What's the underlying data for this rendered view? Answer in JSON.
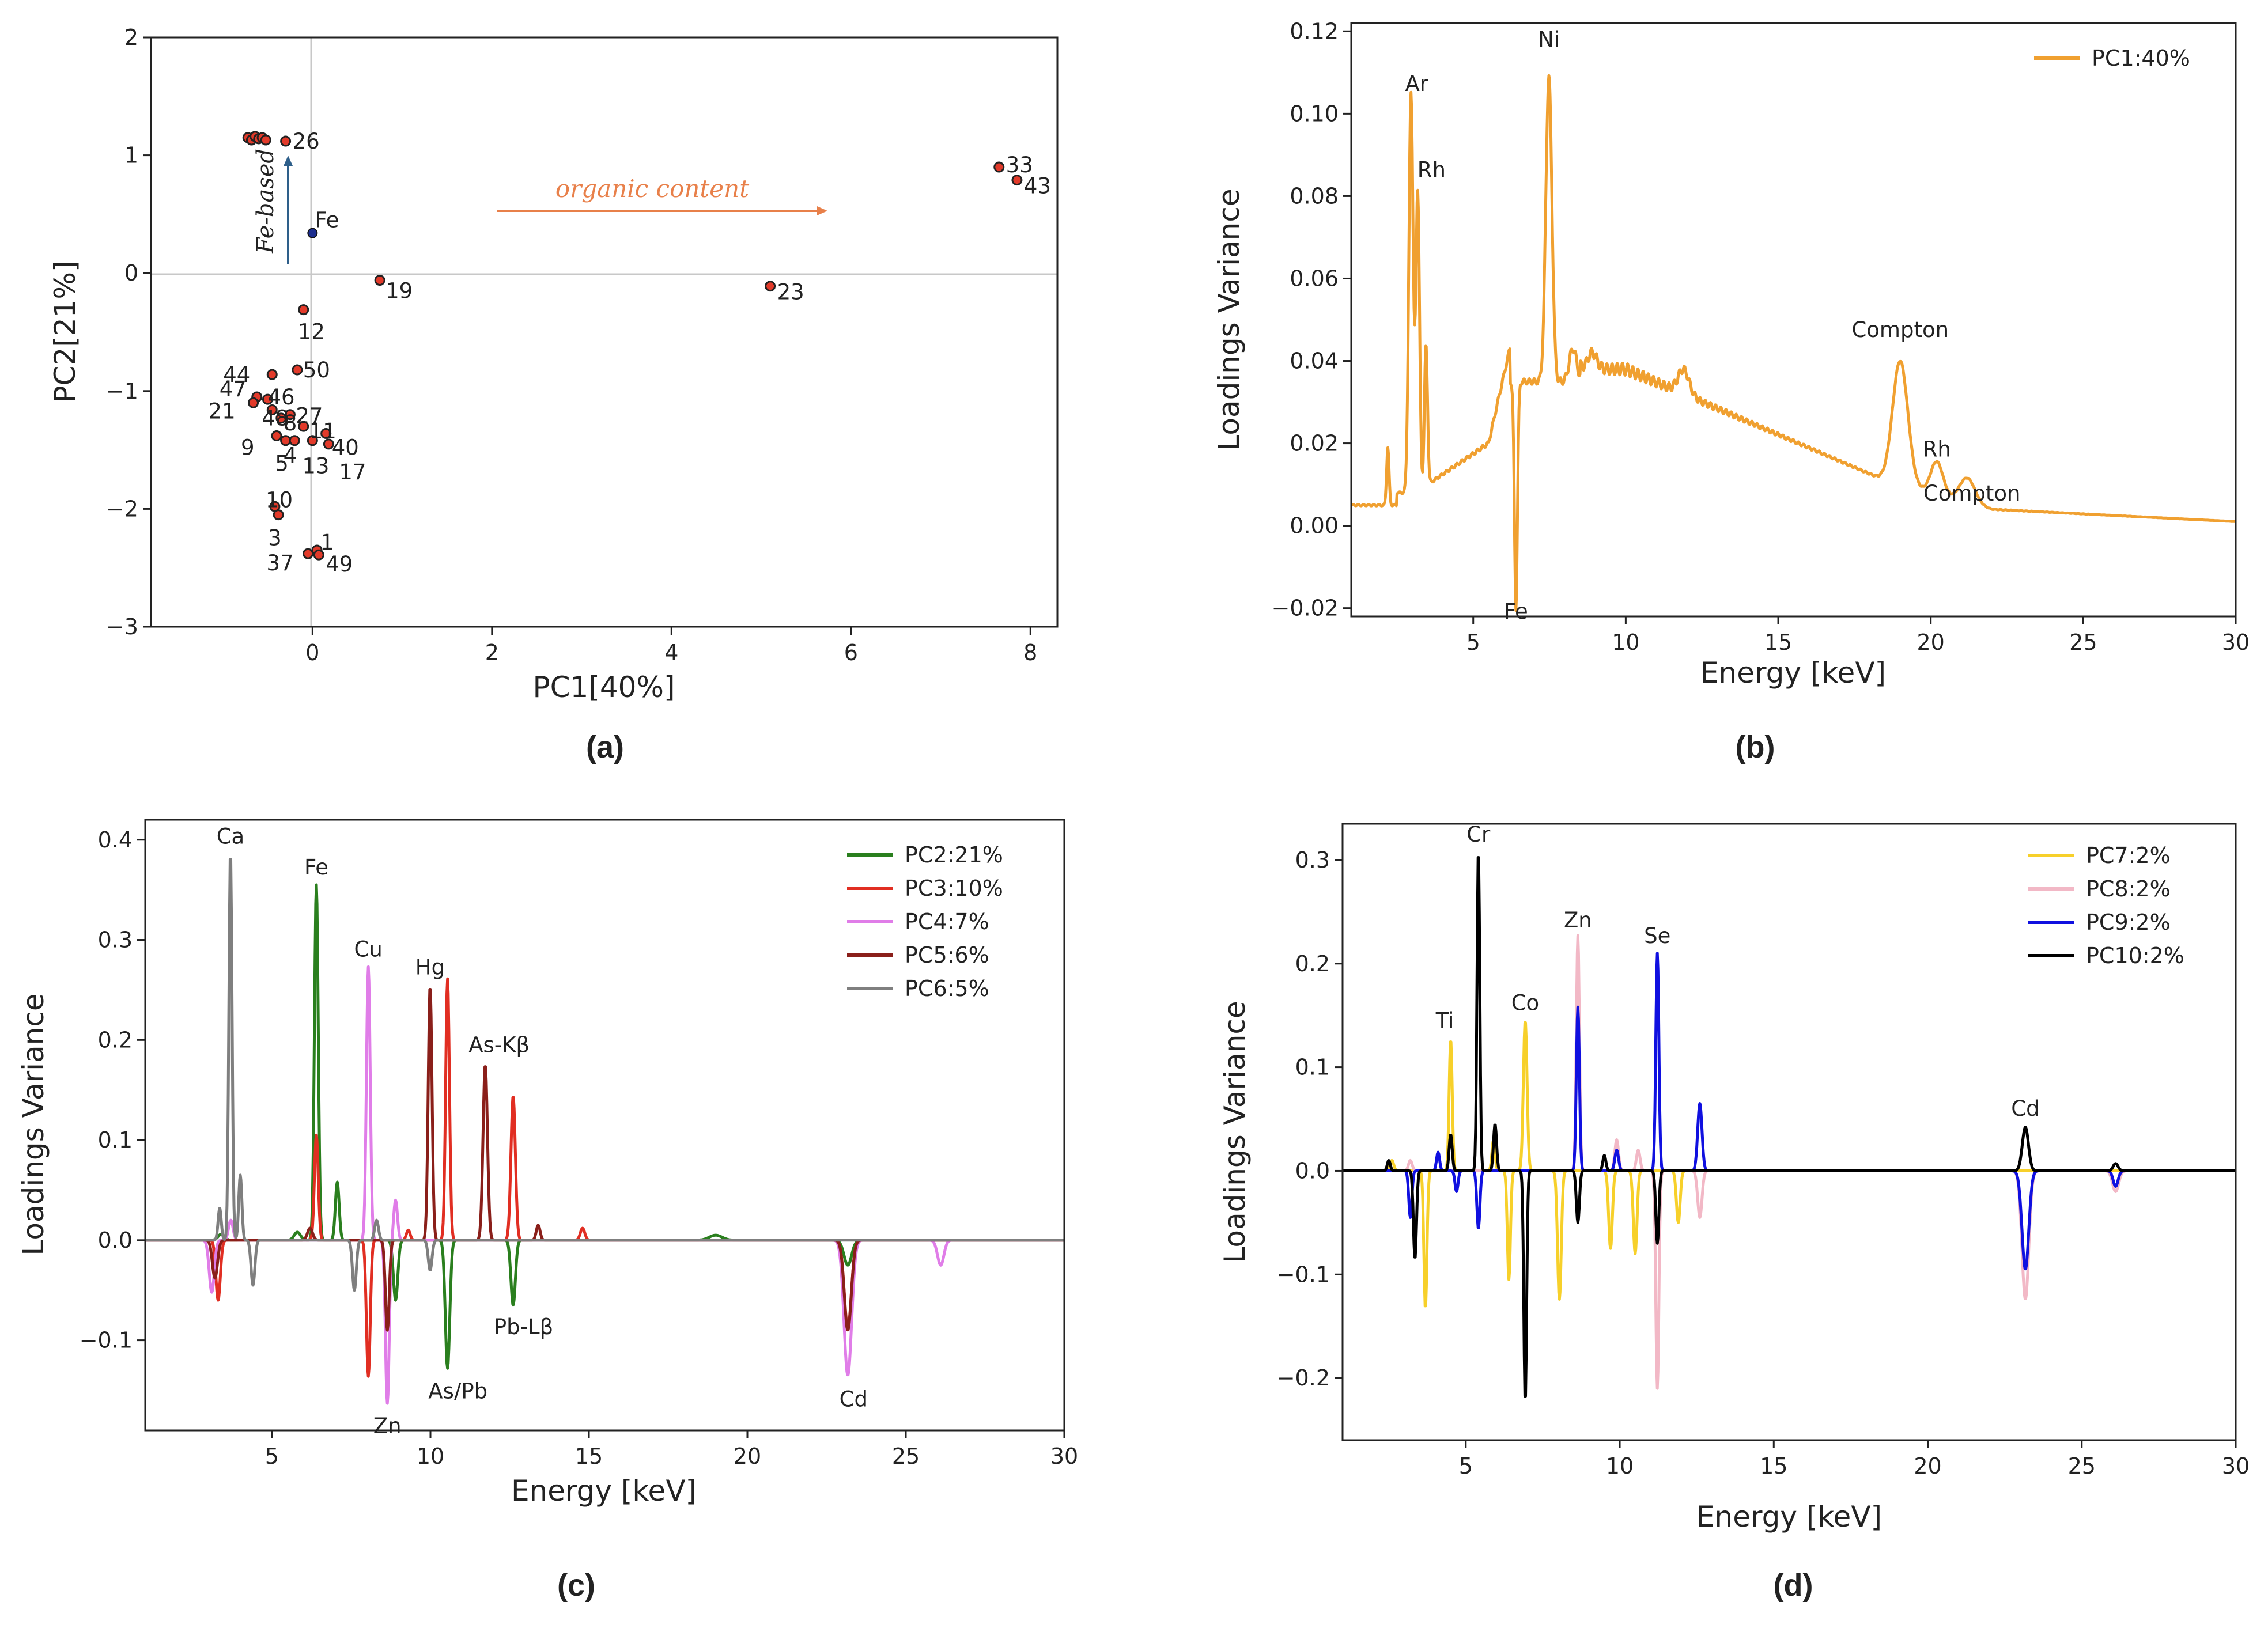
{
  "colors": {
    "axis": "#222222",
    "zero_line": "#c8c8c8",
    "scatter_fill": "#e23a2a",
    "fe_point": "#1c2e8f",
    "arrow_fe": "#2e5f8a",
    "arrow_organic": "#e8804a",
    "pc1": "#f0a030",
    "pc2": "#2a7f1e",
    "pc3": "#e12e22",
    "pc4": "#e07de8",
    "pc5": "#8a1f1a",
    "pc6": "#7f7f7f",
    "pc7": "#f7d02a",
    "pc8": "#f2b8c6",
    "pc9": "#1010e0",
    "pc10": "#000000"
  },
  "chart_data": [
    {
      "panel": "(a)",
      "type": "scatter",
      "xlabel": "PC1[40%]",
      "ylabel": "PC2[21%]",
      "xlim": [
        -1.8,
        8.3
      ],
      "ylim": [
        -3,
        2
      ],
      "xticks": [
        0,
        2,
        4,
        6,
        8
      ],
      "yticks": [
        -3,
        -2,
        -1,
        0,
        1,
        2
      ],
      "points": [
        {
          "label": "",
          "x": -0.72,
          "y": 1.15
        },
        {
          "label": "",
          "x": -0.68,
          "y": 1.13
        },
        {
          "label": "",
          "x": -0.64,
          "y": 1.16
        },
        {
          "label": "",
          "x": -0.6,
          "y": 1.14
        },
        {
          "label": "",
          "x": -0.56,
          "y": 1.15
        },
        {
          "label": "",
          "x": -0.52,
          "y": 1.13
        },
        {
          "label": "26",
          "x": -0.3,
          "y": 1.12
        },
        {
          "label": "33",
          "x": 7.65,
          "y": 0.9
        },
        {
          "label": "43",
          "x": 7.85,
          "y": 0.79
        },
        {
          "label": "19",
          "x": 0.75,
          "y": -0.06
        },
        {
          "label": "23",
          "x": 5.1,
          "y": -0.11
        },
        {
          "label": "12",
          "x": -0.1,
          "y": -0.31
        },
        {
          "label": "44",
          "x": -0.45,
          "y": -0.86
        },
        {
          "label": "50",
          "x": -0.17,
          "y": -0.82
        },
        {
          "label": "47",
          "x": -0.62,
          "y": -1.05
        },
        {
          "label": "46",
          "x": -0.5,
          "y": -1.07
        },
        {
          "label": "21",
          "x": -0.66,
          "y": -1.1
        },
        {
          "label": "48",
          "x": -0.45,
          "y": -1.16
        },
        {
          "label": "27",
          "x": -0.25,
          "y": -1.2
        },
        {
          "label": "8",
          "x": -0.35,
          "y": -1.23
        },
        {
          "label": "11",
          "x": -0.1,
          "y": -1.3
        },
        {
          "label": "9",
          "x": -0.4,
          "y": -1.38
        },
        {
          "label": "4",
          "x": -0.3,
          "y": -1.42
        },
        {
          "label": "40",
          "x": 0.15,
          "y": -1.36
        },
        {
          "label": "5",
          "x": -0.2,
          "y": -1.42
        },
        {
          "label": "13",
          "x": 0.0,
          "y": -1.42
        },
        {
          "label": "17",
          "x": 0.18,
          "y": -1.45
        },
        {
          "label": "10",
          "x": -0.42,
          "y": -1.98
        },
        {
          "label": "3",
          "x": -0.38,
          "y": -2.05
        },
        {
          "label": "1",
          "x": 0.05,
          "y": -2.35
        },
        {
          "label": "37",
          "x": -0.05,
          "y": -2.38
        },
        {
          "label": "49",
          "x": 0.07,
          "y": -2.39
        }
      ],
      "fe_point": {
        "label": "Fe",
        "x": 0.0,
        "y": 0.34
      },
      "annotations": [
        "organic content",
        "Fe-based"
      ]
    },
    {
      "panel": "(b)",
      "type": "line",
      "xlabel": "Energy [keV]",
      "ylabel": "Loadings Variance",
      "xlim": [
        1,
        30
      ],
      "ylim": [
        -0.022,
        0.122
      ],
      "xticks": [
        5,
        10,
        15,
        20,
        25,
        30
      ],
      "yticks": [
        -0.02,
        0.0,
        0.02,
        0.04,
        0.06,
        0.08,
        0.1,
        0.12
      ],
      "ytick_labels": [
        "−0.02",
        "0.00",
        "0.02",
        "0.04",
        "0.06",
        "0.08",
        "0.10",
        "0.12"
      ],
      "series": [
        {
          "name": "PC1:40%",
          "color_key": "pc1"
        }
      ],
      "peak_labels": [
        {
          "text": "Ar",
          "x": 2.96,
          "y": 0.103
        },
        {
          "text": "Rh",
          "x": 3.18,
          "y": 0.081
        },
        {
          "text": "Ni",
          "x": 7.48,
          "y": 0.114
        },
        {
          "text": "Fe",
          "x": 6.4,
          "y": -0.017
        },
        {
          "text": "Compton",
          "x": 19.0,
          "y": 0.043
        },
        {
          "text": "Rh",
          "x": 20.2,
          "y": 0.014
        },
        {
          "text": "Compton",
          "x": 21.2,
          "y": 0.012
        }
      ]
    },
    {
      "panel": "(c)",
      "type": "line",
      "xlabel": "Energy [keV]",
      "ylabel": "Loadings Variance",
      "xlim": [
        1,
        30
      ],
      "ylim": [
        -0.19,
        0.42
      ],
      "xticks": [
        5,
        10,
        15,
        20,
        25,
        30
      ],
      "yticks": [
        -0.1,
        0.0,
        0.1,
        0.2,
        0.3,
        0.4
      ],
      "ytick_labels": [
        "−0.1",
        "0.0",
        "0.1",
        "0.2",
        "0.3",
        "0.4"
      ],
      "series": [
        {
          "name": "PC2:21%",
          "color_key": "pc2"
        },
        {
          "name": "PC3:10%",
          "color_key": "pc3"
        },
        {
          "name": "PC4:7%",
          "color_key": "pc4"
        },
        {
          "name": "PC5:6%",
          "color_key": "pc5"
        },
        {
          "name": "PC6:5%",
          "color_key": "pc6"
        }
      ],
      "peak_labels": [
        {
          "text": "Ca",
          "x": 3.69,
          "y": 0.388
        },
        {
          "text": "Fe",
          "x": 6.4,
          "y": 0.355
        },
        {
          "text": "Cu",
          "x": 8.04,
          "y": 0.273
        },
        {
          "text": "Hg",
          "x": 9.99,
          "y": 0.254
        },
        {
          "text": "As-Kβ",
          "x": 11.73,
          "y": 0.175
        },
        {
          "text": "Zn",
          "x": 8.64,
          "y": -0.163
        },
        {
          "text": "As/Pb",
          "x": 10.54,
          "y": -0.128
        },
        {
          "text": "Pb-Lβ",
          "x": 12.61,
          "y": -0.065
        },
        {
          "text": "Cd",
          "x": 23.17,
          "y": -0.135
        }
      ]
    },
    {
      "panel": "(d)",
      "type": "line",
      "xlabel": "Energy [keV]",
      "ylabel": "Loadings Variance",
      "xlim": [
        1,
        30
      ],
      "ylim": [
        -0.26,
        0.335
      ],
      "xticks": [
        5,
        10,
        15,
        20,
        25,
        30
      ],
      "yticks": [
        -0.2,
        -0.1,
        0.0,
        0.1,
        0.2,
        0.3
      ],
      "ytick_labels": [
        "−0.2",
        "−0.1",
        "0.0",
        "0.1",
        "0.2",
        "0.3"
      ],
      "series": [
        {
          "name": "PC7:2%",
          "color_key": "pc7"
        },
        {
          "name": "PC8:2%",
          "color_key": "pc8"
        },
        {
          "name": "PC9:2%",
          "color_key": "pc9"
        },
        {
          "name": "PC10:2%",
          "color_key": "pc10"
        }
      ],
      "peak_labels": [
        {
          "text": "Ti",
          "x": 4.51,
          "y": 0.127
        },
        {
          "text": "Cr",
          "x": 5.41,
          "y": 0.31
        },
        {
          "text": "Co",
          "x": 6.93,
          "y": 0.145
        },
        {
          "text": "Zn",
          "x": 8.64,
          "y": 0.227
        },
        {
          "text": "Se",
          "x": 11.22,
          "y": 0.21
        },
        {
          "text": "Cd",
          "x": 23.17,
          "y": 0.042
        }
      ]
    }
  ]
}
